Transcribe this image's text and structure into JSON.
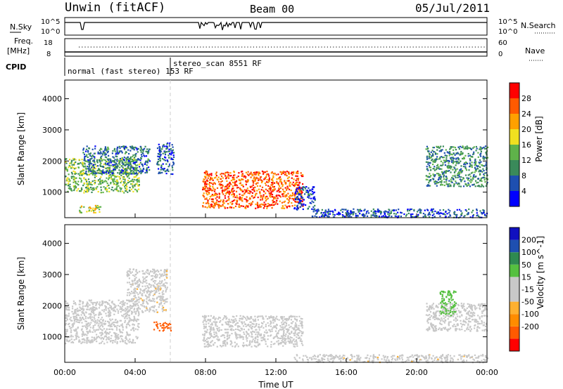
{
  "header": {
    "station": "Unwin (fitACF)",
    "beam": "Beam 00",
    "date": "05/Jul/2011"
  },
  "top_panels": {
    "nsky_label": "N.Sky",
    "nsearch_label": "N.Search",
    "noise_ticks": [
      "10^5",
      "10^0"
    ],
    "freq_label": "Freq.",
    "freq_unit": "[MHz]",
    "freq_ticks": [
      "18",
      "8"
    ],
    "nave_label": "Nave",
    "nave_ticks": [
      "60",
      "0"
    ],
    "cpid_label": "CPID",
    "cpid_modes": [
      {
        "label": "normal (fast stereo) 153 RF",
        "start_hour": 0
      },
      {
        "label": "stereo_scan 8551 RF",
        "start_hour": 6
      }
    ]
  },
  "colors": {
    "power_scale": [
      "#0000ff",
      "#1e4fb0",
      "#3a8a5a",
      "#5fb24a",
      "#f0e020",
      "#ffa000",
      "#ff5a00",
      "#ff0000"
    ],
    "velocity_scale": [
      "#ff0000",
      "#ff5a00",
      "#ff8c00",
      "#ffb030",
      "#c8c8c8",
      "#c8c8c8",
      "#55c040",
      "#2e8a50",
      "#1e4fb0",
      "#1010c0"
    ]
  },
  "chart_data": [
    {
      "type": "heatmap",
      "panel": "power",
      "ylabel": "Slant Range [km]",
      "x_ticks": [
        "00:00",
        "04:00",
        "08:00",
        "12:00",
        "16:00",
        "20:00",
        "00:00"
      ],
      "xlim": [
        0,
        24
      ],
      "y_ticks": [
        "1000",
        "2000",
        "3000",
        "4000"
      ],
      "ylim": [
        180,
        4600
      ],
      "colorbar_label": "Power [dB]",
      "colorbar_ticks": [
        "4",
        "8",
        "12",
        "16",
        "20",
        "24",
        "28"
      ],
      "clim": [
        0,
        32
      ],
      "scatter_regions": [
        {
          "x": [
            0.0,
            4.2
          ],
          "y": [
            1000,
            2100
          ],
          "value": 14
        },
        {
          "x": [
            1.0,
            4.8
          ],
          "y": [
            1600,
            2500
          ],
          "value": 8
        },
        {
          "x": [
            0.8,
            2.0
          ],
          "y": [
            350,
            600
          ],
          "value": 18
        },
        {
          "x": [
            5.2,
            6.2
          ],
          "y": [
            1600,
            2600
          ],
          "value": 6
        },
        {
          "x": [
            7.8,
            13.5
          ],
          "y": [
            500,
            1700
          ],
          "value": 26
        },
        {
          "x": [
            13.0,
            14.2
          ],
          "y": [
            450,
            1200
          ],
          "value": 5
        },
        {
          "x": [
            14.0,
            24.0
          ],
          "y": [
            200,
            480
          ],
          "value": 6
        },
        {
          "x": [
            20.5,
            24.0
          ],
          "y": [
            1200,
            2500
          ],
          "value": 10
        }
      ]
    },
    {
      "type": "heatmap",
      "panel": "velocity",
      "xlabel": "Time UT",
      "ylabel": "Slant Range [km]",
      "x_ticks": [
        "00:00",
        "04:00",
        "08:00",
        "12:00",
        "16:00",
        "20:00",
        "00:00"
      ],
      "xlim": [
        0,
        24
      ],
      "y_ticks": [
        "1000",
        "2000",
        "3000",
        "4000"
      ],
      "ylim": [
        180,
        4600
      ],
      "colorbar_label": "Velocity [m s^-1]",
      "colorbar_ticks": [
        "200",
        "100",
        "50",
        "15",
        "-15",
        "-50",
        "-100",
        "-200"
      ],
      "clim": [
        -250,
        250
      ],
      "scatter_regions": [
        {
          "x": [
            0.0,
            4.2
          ],
          "y": [
            800,
            2200
          ],
          "value": 0
        },
        {
          "x": [
            3.5,
            5.8
          ],
          "y": [
            1800,
            3200
          ],
          "value": -40
        },
        {
          "x": [
            7.8,
            13.5
          ],
          "y": [
            700,
            1700
          ],
          "value": 0
        },
        {
          "x": [
            5.0,
            6.0
          ],
          "y": [
            1200,
            1500
          ],
          "value": -200
        },
        {
          "x": [
            13.0,
            24.0
          ],
          "y": [
            200,
            450
          ],
          "value": -30
        },
        {
          "x": [
            20.5,
            24.0
          ],
          "y": [
            1200,
            2100
          ],
          "value": 0
        },
        {
          "x": [
            21.3,
            22.2
          ],
          "y": [
            1700,
            2500
          ],
          "value": 60
        }
      ]
    }
  ]
}
